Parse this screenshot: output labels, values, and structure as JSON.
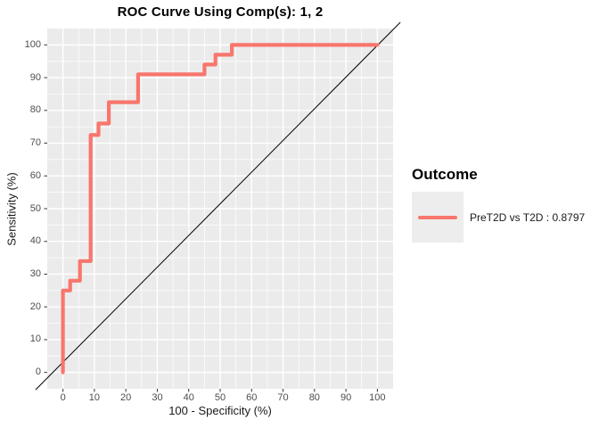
{
  "title": "ROC Curve Using Comp(s): 1, 2",
  "legend": {
    "title": "Outcome",
    "items": [
      {
        "label": "PreT2D vs T2D : 0.8797",
        "color": "#F8766D"
      }
    ]
  },
  "colors": {
    "curve": "#F8766D",
    "panel_bg": "#EBEBEB",
    "grid_major": "#FFFFFF",
    "grid_minor": "#FFFFFF",
    "reference_line": "#000000",
    "legend_key_bg": "#EDEDED",
    "tick_mark": "#333333",
    "tick_text": "#4D4D4D"
  },
  "chart_data": {
    "type": "line",
    "subtype": "roc-step-curve",
    "title": "ROC Curve Using Comp(s): 1, 2",
    "xlabel": "100 - Specificity (%)",
    "ylabel": "Sensitivity (%)",
    "xlim": [
      -5,
      105
    ],
    "ylim": [
      -5,
      105
    ],
    "x_ticks": [
      0,
      10,
      20,
      30,
      40,
      50,
      60,
      70,
      80,
      90,
      100
    ],
    "y_ticks": [
      0,
      10,
      20,
      30,
      40,
      50,
      60,
      70,
      80,
      90,
      100
    ],
    "x_minor_ticks": [
      5,
      15,
      25,
      35,
      45,
      55,
      65,
      75,
      85,
      95
    ],
    "y_minor_ticks": [
      5,
      15,
      25,
      35,
      45,
      55,
      65,
      75,
      85,
      95
    ],
    "grid": "white major and minor gridlines on grey panel",
    "legend_position": "right",
    "series": [
      {
        "name": "PreT2D vs T2D : 0.8797",
        "auc": 0.8797,
        "color": "#F8766D",
        "points": [
          [
            0,
            0
          ],
          [
            0,
            25
          ],
          [
            2.3,
            25
          ],
          [
            2.3,
            28
          ],
          [
            5.4,
            28
          ],
          [
            5.4,
            34
          ],
          [
            8.8,
            34
          ],
          [
            8.8,
            72.5
          ],
          [
            11.3,
            72.5
          ],
          [
            11.3,
            76
          ],
          [
            14.6,
            76
          ],
          [
            14.6,
            82.5
          ],
          [
            23.9,
            82.5
          ],
          [
            23.9,
            91
          ],
          [
            45,
            91
          ],
          [
            45,
            94
          ],
          [
            48.5,
            94
          ],
          [
            48.5,
            97
          ],
          [
            53.7,
            97
          ],
          [
            53.7,
            100
          ],
          [
            100,
            100
          ]
        ]
      }
    ],
    "reference_line": {
      "label": "chance line y = x",
      "color": "#000000",
      "points": [
        [
          -8.7,
          -5.3
        ],
        [
          107.3,
          106.9
        ]
      ]
    }
  }
}
